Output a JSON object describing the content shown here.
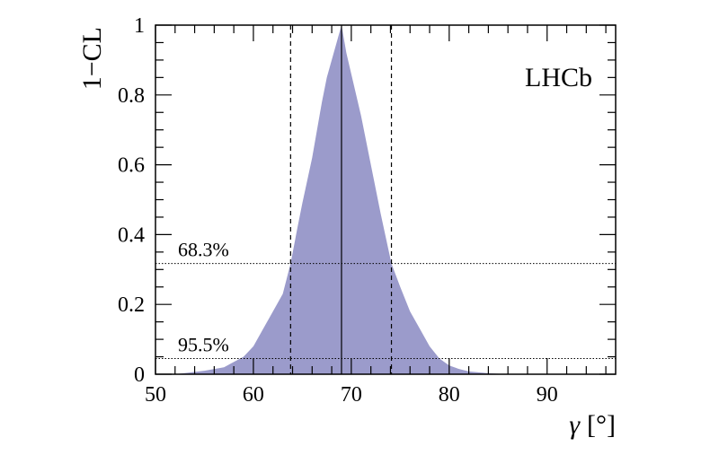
{
  "chart_data": {
    "type": "area",
    "title": "",
    "xlabel_symbol": "γ",
    "xlabel_unit": "[°]",
    "ylabel": "1−CL",
    "xlim": [
      50,
      97
    ],
    "ylim": [
      0,
      1
    ],
    "x_ticks": [
      50,
      60,
      70,
      80,
      90
    ],
    "y_ticks": [
      0,
      0.2,
      0.4,
      0.6,
      0.8,
      1
    ],
    "y_tick_labels": [
      "0",
      "0.2",
      "0.4",
      "0.6",
      "0.8",
      "1"
    ],
    "grid": false,
    "experiment_label": "LHCb",
    "fill_color": "#9b9bcb",
    "series": [
      {
        "x": [
          52,
          55,
          57,
          59,
          60,
          61,
          62,
          63,
          63.8,
          64.5,
          65,
          66,
          67,
          67.5,
          68,
          68.5,
          69,
          69.5,
          70,
          71,
          72,
          73,
          74.1,
          75,
          76,
          77,
          78,
          79,
          80,
          81,
          82,
          84,
          86
        ],
        "y": [
          0.0,
          0.01,
          0.02,
          0.05,
          0.08,
          0.13,
          0.18,
          0.23,
          0.317,
          0.42,
          0.49,
          0.62,
          0.78,
          0.85,
          0.9,
          0.95,
          1.0,
          0.92,
          0.86,
          0.74,
          0.6,
          0.46,
          0.317,
          0.25,
          0.18,
          0.13,
          0.08,
          0.045,
          0.025,
          0.015,
          0.008,
          0.003,
          0.0
        ]
      }
    ],
    "central_value": 69,
    "interval_lines": [
      63.8,
      74.1
    ],
    "cl_levels": [
      {
        "label": "68.3%",
        "value": 0.317
      },
      {
        "label": "95.5%",
        "value": 0.045
      }
    ]
  }
}
